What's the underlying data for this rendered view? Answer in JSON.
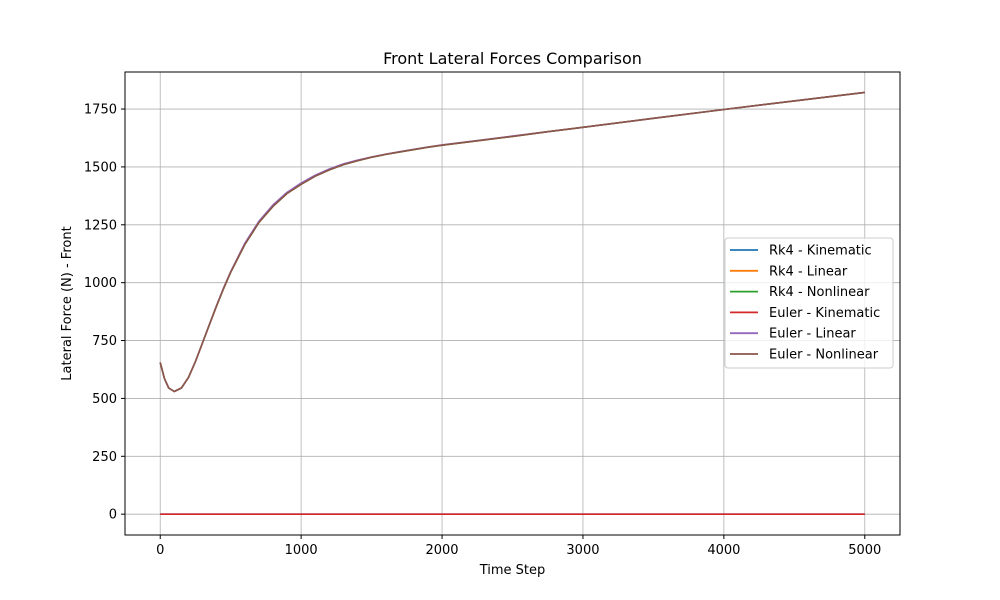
{
  "chart_data": {
    "type": "line",
    "title": "Front Lateral Forces Comparison",
    "xlabel": "Time Step",
    "ylabel": "Lateral Force (N) - Front",
    "xlim": [
      -250,
      5250
    ],
    "ylim": [
      -90,
      1910
    ],
    "xticks": [
      0,
      1000,
      2000,
      3000,
      4000,
      5000
    ],
    "yticks": [
      0,
      250,
      500,
      750,
      1000,
      1250,
      1500,
      1750
    ],
    "grid": true,
    "legend_position": "center-right",
    "series": [
      {
        "name": "Rk4 - Kinematic",
        "color": "#1f77b4",
        "x": [
          0,
          1000,
          2000,
          3000,
          4000,
          5000
        ],
        "y": [
          0,
          0,
          0,
          0,
          0,
          0
        ]
      },
      {
        "name": "Rk4 - Linear",
        "color": "#ff7f0e",
        "x": [
          0,
          30,
          60,
          100,
          150,
          200,
          250,
          300,
          350,
          400,
          450,
          500,
          600,
          700,
          800,
          900,
          1000,
          1100,
          1200,
          1300,
          1400,
          1500,
          1600,
          1700,
          1800,
          1900,
          2000,
          2250,
          2500,
          2750,
          3000,
          3500,
          4000,
          4500,
          5000
        ],
        "y": [
          655,
          585,
          545,
          530,
          545,
          590,
          660,
          740,
          820,
          900,
          975,
          1045,
          1165,
          1260,
          1330,
          1385,
          1425,
          1460,
          1487,
          1510,
          1527,
          1542,
          1554,
          1565,
          1575,
          1585,
          1594,
          1613,
          1632,
          1652,
          1671,
          1710,
          1748,
          1785,
          1822
        ]
      },
      {
        "name": "Rk4 - Nonlinear",
        "color": "#2ca02c",
        "x": [
          0,
          30,
          60,
          100,
          150,
          200,
          250,
          300,
          350,
          400,
          450,
          500,
          600,
          700,
          800,
          900,
          1000,
          1100,
          1200,
          1300,
          1400,
          1500,
          1600,
          1700,
          1800,
          1900,
          2000,
          2250,
          2500,
          2750,
          3000,
          3500,
          4000,
          4500,
          5000
        ],
        "y": [
          655,
          585,
          545,
          530,
          545,
          590,
          660,
          740,
          820,
          900,
          975,
          1045,
          1165,
          1260,
          1330,
          1385,
          1425,
          1460,
          1487,
          1510,
          1527,
          1542,
          1554,
          1565,
          1575,
          1585,
          1594,
          1613,
          1632,
          1652,
          1671,
          1710,
          1748,
          1785,
          1822
        ]
      },
      {
        "name": "Euler - Kinematic",
        "color": "#d62728",
        "x": [
          0,
          1000,
          2000,
          3000,
          4000,
          5000
        ],
        "y": [
          0,
          0,
          0,
          0,
          0,
          0
        ]
      },
      {
        "name": "Euler - Linear",
        "color": "#9467bd",
        "x": [
          0,
          30,
          60,
          100,
          150,
          200,
          250,
          300,
          350,
          400,
          450,
          500,
          600,
          700,
          800,
          900,
          1000,
          1100,
          1200,
          1300,
          1400,
          1500,
          1600,
          1700,
          1800,
          1900,
          2000,
          2250,
          2500,
          2750,
          3000,
          3500,
          4000,
          4500,
          5000
        ],
        "y": [
          655,
          585,
          545,
          530,
          545,
          590,
          660,
          740,
          820,
          902,
          978,
          1048,
          1170,
          1265,
          1336,
          1390,
          1430,
          1464,
          1491,
          1513,
          1529,
          1543,
          1555,
          1566,
          1576,
          1586,
          1595,
          1614,
          1633,
          1652,
          1671,
          1710,
          1748,
          1785,
          1822
        ]
      },
      {
        "name": "Euler - Nonlinear",
        "color": "#8c564b",
        "x": [
          0,
          30,
          60,
          100,
          150,
          200,
          250,
          300,
          350,
          400,
          450,
          500,
          600,
          700,
          800,
          900,
          1000,
          1100,
          1200,
          1300,
          1400,
          1500,
          1600,
          1700,
          1800,
          1900,
          2000,
          2250,
          2500,
          2750,
          3000,
          3500,
          4000,
          4500,
          5000
        ],
        "y": [
          655,
          585,
          545,
          530,
          545,
          590,
          660,
          740,
          820,
          900,
          975,
          1045,
          1165,
          1260,
          1330,
          1385,
          1425,
          1460,
          1487,
          1510,
          1527,
          1542,
          1554,
          1565,
          1575,
          1585,
          1594,
          1613,
          1632,
          1652,
          1671,
          1710,
          1748,
          1785,
          1822
        ]
      }
    ]
  }
}
